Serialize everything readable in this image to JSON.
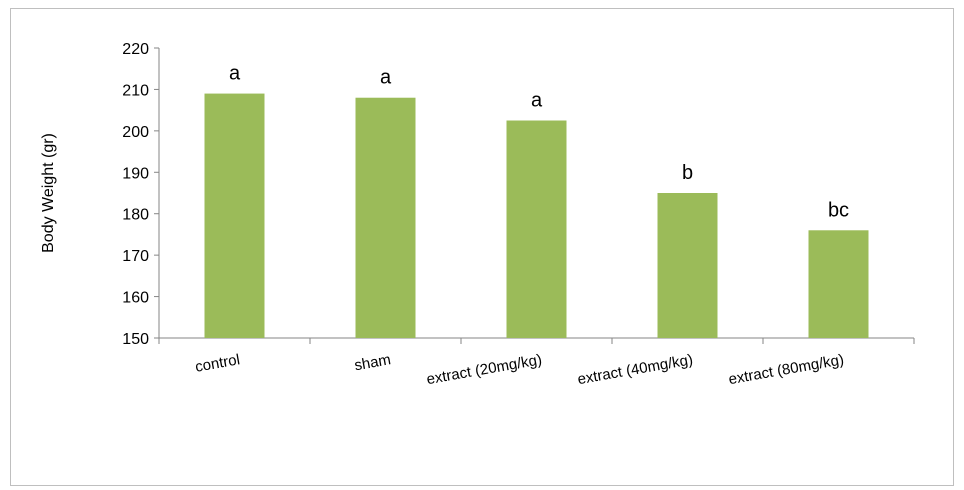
{
  "chart_data": {
    "type": "bar",
    "title": "",
    "xlabel": "",
    "ylabel": "Body Weight (gr)",
    "ylim": [
      150,
      220
    ],
    "yticks": [
      150,
      160,
      170,
      180,
      190,
      200,
      210,
      220
    ],
    "categories": [
      "control",
      "sham",
      "extract (20mg/kg)",
      "extract (40mg/kg)",
      "extract (80mg/kg)"
    ],
    "values": [
      209,
      208,
      202.5,
      185,
      176
    ],
    "bar_labels": [
      "a",
      "a",
      "a",
      "b",
      "bc"
    ],
    "bar_color": "#9bbb59",
    "grid": false,
    "legend": "none"
  }
}
